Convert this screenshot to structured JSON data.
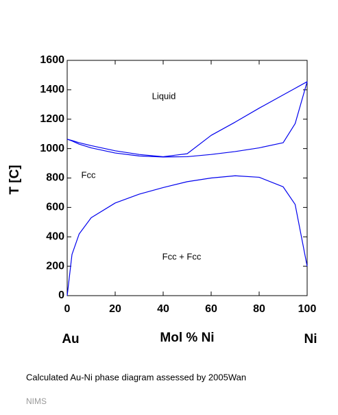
{
  "chart_data": {
    "type": "line",
    "x_label": "Mol % Ni",
    "y_label": "T [C]",
    "x_left_label": "Au",
    "x_right_label": "Ni",
    "annotations": [
      "Liquid",
      "Fcc",
      "Fcc + Fcc"
    ],
    "caption": "Calculated Au-Ni phase diagram assessed by 2005Wan",
    "source": "NIMS",
    "x": [
      0,
      2,
      5,
      10,
      20,
      30,
      40,
      50,
      60,
      70,
      80,
      90,
      95,
      100
    ],
    "series": [
      {
        "color": "#0000ee",
        "values": [
          1064,
          1055,
          1040,
          1020,
          985,
          960,
          945,
          965,
          1090,
          1180,
          1275,
          1365,
          1410,
          1455
        ]
      },
      {
        "color": "#0000ee",
        "values": [
          1064,
          1052,
          1030,
          1005,
          970,
          950,
          943,
          945,
          960,
          980,
          1005,
          1040,
          1170,
          1455
        ]
      },
      {
        "color": "#0000ee",
        "values": [
          0,
          280,
          420,
          530,
          630,
          690,
          735,
          775,
          800,
          815,
          805,
          740,
          620,
          200
        ]
      }
    ],
    "xlim": [
      0,
      100
    ],
    "xticks": [
      0,
      20,
      40,
      60,
      80,
      100
    ],
    "ylim": [
      0,
      1600
    ],
    "yticks": [
      0,
      200,
      400,
      600,
      800,
      1000,
      1200,
      1400,
      1600
    ]
  }
}
